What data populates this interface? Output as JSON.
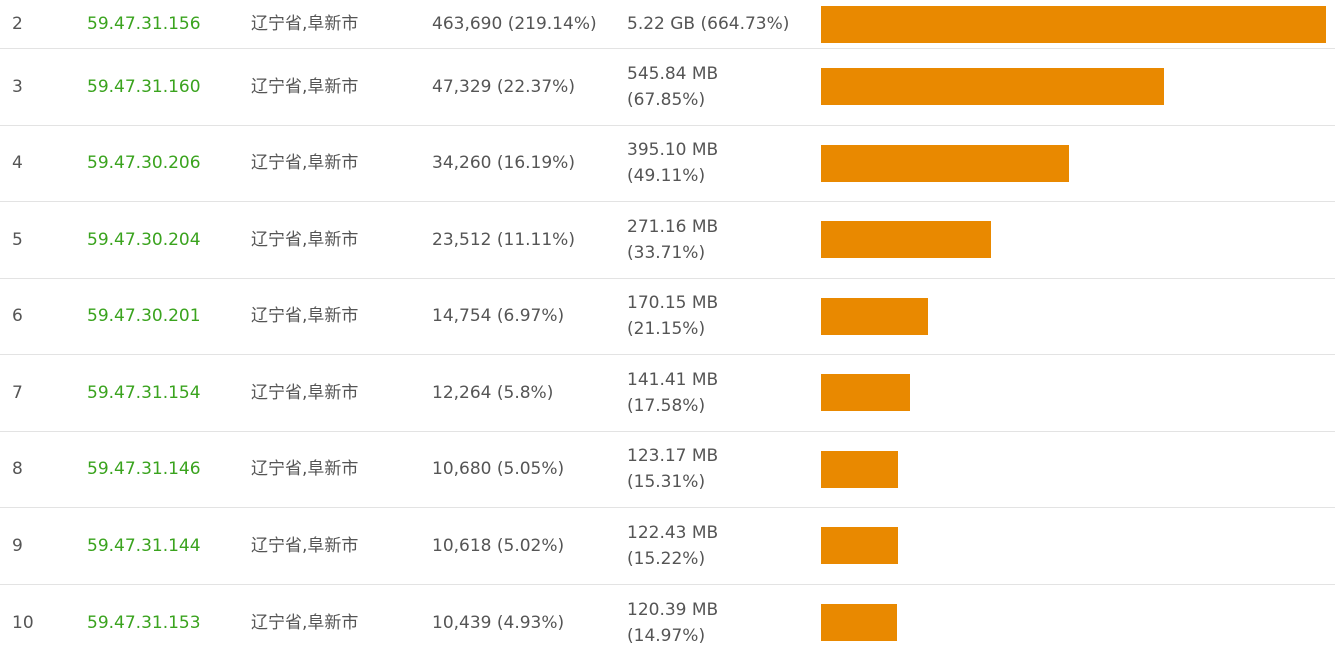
{
  "bar_color": "#e98900",
  "ip_color": "#3aa31e",
  "rows": [
    {
      "rank": "2",
      "ip": "59.47.31.156",
      "location": "辽宁省,阜新市",
      "requests": "463,690 (219.14%)",
      "traffic": "5.22 GB (664.73%)",
      "bar_fraction": 1.0
    },
    {
      "rank": "3",
      "ip": "59.47.31.160",
      "location": "辽宁省,阜新市",
      "requests": "47,329 (22.37%)",
      "traffic": "545.84 MB (67.85%)",
      "bar_fraction": 0.68
    },
    {
      "rank": "4",
      "ip": "59.47.30.206",
      "location": "辽宁省,阜新市",
      "requests": "34,260 (16.19%)",
      "traffic": "395.10 MB (49.11%)",
      "bar_fraction": 0.491
    },
    {
      "rank": "5",
      "ip": "59.47.30.204",
      "location": "辽宁省,阜新市",
      "requests": "23,512 (11.11%)",
      "traffic": "271.16 MB (33.71%)",
      "bar_fraction": 0.337
    },
    {
      "rank": "6",
      "ip": "59.47.30.201",
      "location": "辽宁省,阜新市",
      "requests": "14,754 (6.97%)",
      "traffic": "170.15 MB (21.15%)",
      "bar_fraction": 0.212
    },
    {
      "rank": "7",
      "ip": "59.47.31.154",
      "location": "辽宁省,阜新市",
      "requests": "12,264 (5.8%)",
      "traffic": "141.41 MB (17.58%)",
      "bar_fraction": 0.176
    },
    {
      "rank": "8",
      "ip": "59.47.31.146",
      "location": "辽宁省,阜新市",
      "requests": "10,680 (5.05%)",
      "traffic": "123.17 MB (15.31%)",
      "bar_fraction": 0.153
    },
    {
      "rank": "9",
      "ip": "59.47.31.144",
      "location": "辽宁省,阜新市",
      "requests": "10,618 (5.02%)",
      "traffic": "122.43 MB (15.22%)",
      "bar_fraction": 0.153
    },
    {
      "rank": "10",
      "ip": "59.47.31.153",
      "location": "辽宁省,阜新市",
      "requests": "10,439 (4.93%)",
      "traffic": "120.39 MB (14.97%)",
      "bar_fraction": 0.151
    }
  ]
}
